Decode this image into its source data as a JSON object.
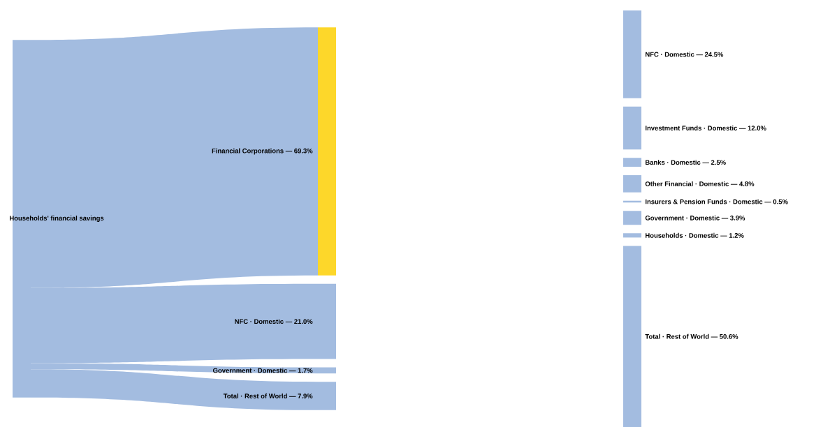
{
  "chart_data": {
    "type": "other",
    "categories": [
      "Households' financial savings",
      "Financial Corporations",
      "NFC · Domestic",
      "Government · Domestic",
      "Total · Rest of World",
      "NFC · Domestic",
      "Investment Funds · Domestic",
      "Banks · Domestic",
      "Other Financial · Domestic",
      "Insurers & Pension Funds · Domestic",
      "Government · Domestic",
      "Households · Domestic",
      "Total · Rest of World"
    ],
    "colors": [
      "#a3bce0",
      "#fdd72a",
      "#a3bce0",
      "#a3bce0",
      "#a3bce0",
      "#a3bce0",
      "#a3bce0",
      "#a3bce0",
      "#a3bce0",
      "#a3bce0",
      "#a3bce0",
      "#a3bce0",
      "#a3bce0"
    ],
    "series": [
      {
        "values": [
          null,
          69.3,
          21.0,
          1.7,
          7.9,
          null,
          null,
          null,
          null,
          null,
          null,
          null,
          null
        ],
        "value_labels": [
          null,
          "— 69.3%",
          "— 21.0%",
          "— 1.7%",
          "— 7.9%",
          null,
          null,
          null,
          null,
          null,
          null,
          null,
          null
        ]
      },
      {
        "values": [
          null,
          null,
          null,
          null,
          null,
          24.5,
          12.0,
          2.5,
          4.8,
          0.5,
          3.9,
          1.2,
          50.6
        ],
        "value_labels": [
          null,
          null,
          null,
          null,
          null,
          "— 24.5%",
          "— 12.0%",
          "— 2.5%",
          "— 4.8%",
          "— 0.5%",
          "— 3.9%",
          "— 1.2%",
          "— 50.6%"
        ]
      }
    ]
  }
}
